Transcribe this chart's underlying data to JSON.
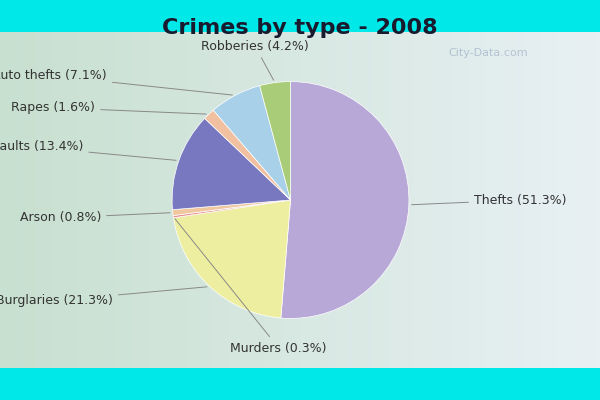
{
  "title": "Crimes by type - 2008",
  "labels": [
    "Thefts",
    "Burglaries",
    "Murders",
    "Arson",
    "Assaults",
    "Rapes",
    "Auto thefts",
    "Robberies"
  ],
  "values": [
    51.3,
    21.3,
    0.3,
    0.8,
    13.4,
    1.6,
    7.1,
    4.2
  ],
  "colors": [
    "#b8a8d8",
    "#eeeea0",
    "#e89090",
    "#f0c8a0",
    "#7878c0",
    "#f0c0a0",
    "#a8d0e8",
    "#a8cc78"
  ],
  "bg_cyan": "#00e8e8",
  "bg_inner_left": "#c8e0d0",
  "bg_inner_right": "#e8f0f4",
  "title_fontsize": 16,
  "label_fontsize": 9,
  "startangle": 90,
  "watermark": "City-Data.com"
}
